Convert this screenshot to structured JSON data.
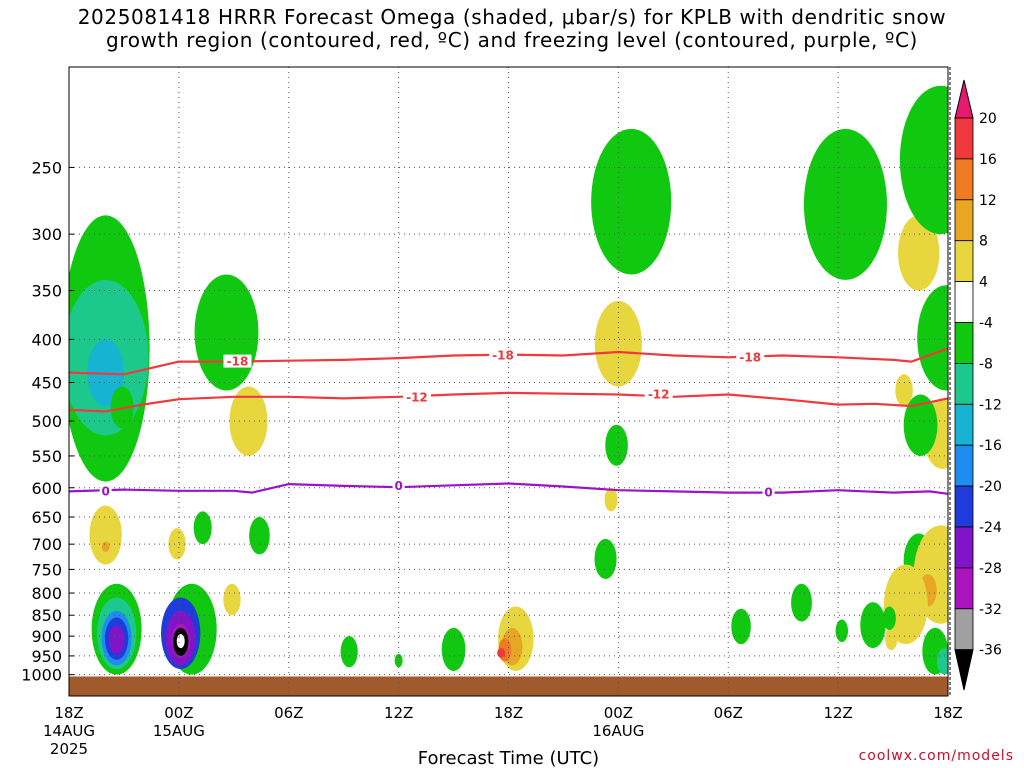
{
  "title": {
    "line1": "2025081418 HRRR Forecast Omega (shaded, μbar/s) for KPLB with dendritic snow",
    "line2": "growth region (contoured, red, ºC) and freezing level (contoured, purple, ºC)"
  },
  "credit": "coolwx.com/models",
  "chart_data": {
    "type": "heatmap",
    "xlabel": "Forecast Time (UTC)",
    "ylabel": "",
    "x_ticks": [
      {
        "hour": 0,
        "label": "18Z",
        "sub1": "14AUG",
        "sub2": "2025"
      },
      {
        "hour": 6,
        "label": "00Z",
        "sub1": "15AUG",
        "sub2": ""
      },
      {
        "hour": 12,
        "label": "06Z",
        "sub1": "",
        "sub2": ""
      },
      {
        "hour": 18,
        "label": "12Z",
        "sub1": "",
        "sub2": ""
      },
      {
        "hour": 24,
        "label": "18Z",
        "sub1": "",
        "sub2": ""
      },
      {
        "hour": 30,
        "label": "00Z",
        "sub1": "16AUG",
        "sub2": ""
      },
      {
        "hour": 36,
        "label": "06Z",
        "sub1": "",
        "sub2": ""
      },
      {
        "hour": 42,
        "label": "12Z",
        "sub1": "",
        "sub2": ""
      },
      {
        "hour": 48,
        "label": "18Z",
        "sub1": "",
        "sub2": ""
      }
    ],
    "xlim": [
      0,
      48
    ],
    "y_axis": "pressure (hPa), log scale, inverted",
    "y_ticks": [
      250,
      300,
      350,
      400,
      450,
      500,
      550,
      600,
      650,
      700,
      750,
      800,
      850,
      900,
      950,
      1000
    ],
    "ylim": [
      1060,
      190
    ],
    "grid": true,
    "colorbar": {
      "label_values": [
        "20",
        "16",
        "12",
        "8",
        "4",
        "-4",
        "-8",
        "-12",
        "-16",
        "-20",
        "-24",
        "-28",
        "-32",
        "-36"
      ],
      "bins": [
        {
          "range": ">20",
          "color": "#e8186e"
        },
        {
          "range": "16 to 20",
          "color": "#f0393c"
        },
        {
          "range": "12 to 16",
          "color": "#f07a22"
        },
        {
          "range": "8 to 12",
          "color": "#e8a624"
        },
        {
          "range": "4 to 8",
          "color": "#e8d63e"
        },
        {
          "range": "-4 to 4",
          "color": "#ffffff"
        },
        {
          "range": "-8 to -4",
          "color": "#0fc80f"
        },
        {
          "range": "-12 to -8",
          "color": "#1dc88c"
        },
        {
          "range": "-16 to -12",
          "color": "#16b4d2"
        },
        {
          "range": "-20 to -16",
          "color": "#1e8cf0"
        },
        {
          "range": "-24 to -20",
          "color": "#1e3cdc"
        },
        {
          "range": "-28 to -24",
          "color": "#8214c8"
        },
        {
          "range": "-32 to -28",
          "color": "#aa14be"
        },
        {
          "range": "-36 to -32",
          "color": "#a0a0a0"
        },
        {
          "range": "<-36",
          "color": "#000000"
        }
      ]
    },
    "series": [
      {
        "name": "",
        "label": "-18",
        "color": "#f0393c",
        "points": [
          [
            0,
            438
          ],
          [
            3,
            440
          ],
          [
            6,
            425
          ],
          [
            9,
            425
          ],
          [
            12,
            424
          ],
          [
            15,
            423
          ],
          [
            18,
            421
          ],
          [
            21,
            418
          ],
          [
            24,
            417
          ],
          [
            27,
            418
          ],
          [
            30,
            414
          ],
          [
            33,
            418
          ],
          [
            36,
            420
          ],
          [
            39,
            418
          ],
          [
            42,
            420
          ],
          [
            45,
            423
          ],
          [
            46,
            425
          ],
          [
            48,
            410
          ]
        ]
      },
      {
        "name": "",
        "label": "-12",
        "color": "#f0393c",
        "points": [
          [
            0,
            485
          ],
          [
            2,
            487
          ],
          [
            4,
            478
          ],
          [
            6,
            471
          ],
          [
            9,
            468
          ],
          [
            12,
            468
          ],
          [
            15,
            470
          ],
          [
            18,
            468
          ],
          [
            21,
            465
          ],
          [
            24,
            463
          ],
          [
            27,
            464
          ],
          [
            30,
            465
          ],
          [
            33,
            468
          ],
          [
            36,
            465
          ],
          [
            39,
            471
          ],
          [
            42,
            478
          ],
          [
            44,
            477
          ],
          [
            46,
            480
          ],
          [
            48,
            470
          ]
        ]
      },
      {
        "name": "",
        "label": "0",
        "color": "#9a14c8",
        "points": [
          [
            0,
            606
          ],
          [
            3,
            603
          ],
          [
            6,
            605
          ],
          [
            9,
            605
          ],
          [
            10,
            608
          ],
          [
            12,
            594
          ],
          [
            15,
            597
          ],
          [
            18,
            599
          ],
          [
            21,
            596
          ],
          [
            24,
            593
          ],
          [
            27,
            598
          ],
          [
            30,
            604
          ],
          [
            33,
            606
          ],
          [
            36,
            608
          ],
          [
            39,
            608
          ],
          [
            42,
            604
          ],
          [
            45,
            608
          ],
          [
            47,
            606
          ],
          [
            48,
            610
          ]
        ]
      }
    ],
    "contour_labels": [
      {
        "text": "-18",
        "hour": 9.2,
        "p": 425
      },
      {
        "text": "-18",
        "hour": 23.7,
        "p": 418
      },
      {
        "text": "-18",
        "hour": 37.2,
        "p": 420
      },
      {
        "text": "-12",
        "hour": 19.0,
        "p": 469
      },
      {
        "text": "-12",
        "hour": 32.2,
        "p": 465
      },
      {
        "text": "0",
        "hour": 2.0,
        "p": 606
      },
      {
        "text": "0",
        "hour": 18.0,
        "p": 597
      },
      {
        "text": "0",
        "hour": 38.2,
        "p": 608
      }
    ],
    "shaded_regions": [
      {
        "color": "#0fc80f",
        "hour": 2.0,
        "p_top": 285,
        "p_bot": 590
      },
      {
        "color": "#1dc88c",
        "hour": 2.0,
        "p_top": 340,
        "p_bot": 520
      },
      {
        "color": "#16b4d2",
        "hour": 2.0,
        "p_top": 400,
        "p_bot": 480
      },
      {
        "color": "#0fc80f",
        "hour": 2.9,
        "p_top": 455,
        "p_bot": 510
      },
      {
        "color": "#0fc80f",
        "hour": 8.6,
        "p_top": 335,
        "p_bot": 460
      },
      {
        "color": "#e8d63e",
        "hour": 9.8,
        "p_top": 455,
        "p_bot": 550
      },
      {
        "color": "#e8d63e",
        "hour": 2.0,
        "p_top": 630,
        "p_bot": 740
      },
      {
        "color": "#e8a624",
        "hour": 2.0,
        "p_top": 695,
        "p_bot": 715
      },
      {
        "color": "#e8d63e",
        "hour": 5.9,
        "p_top": 670,
        "p_bot": 730
      },
      {
        "color": "#0fc80f",
        "hour": 7.3,
        "p_top": 640,
        "p_bot": 700
      },
      {
        "color": "#0fc80f",
        "hour": 10.4,
        "p_top": 650,
        "p_bot": 720
      },
      {
        "color": "#e8d63e",
        "hour": 8.9,
        "p_top": 780,
        "p_bot": 850
      },
      {
        "color": "#0fc80f",
        "hour": 2.6,
        "p_top": 780,
        "p_bot": 1000
      },
      {
        "color": "#1dc88c",
        "hour": 2.6,
        "p_top": 810,
        "p_bot": 985
      },
      {
        "color": "#1e8cf0",
        "hour": 2.6,
        "p_top": 840,
        "p_bot": 975
      },
      {
        "color": "#1e3cdc",
        "hour": 2.6,
        "p_top": 855,
        "p_bot": 960
      },
      {
        "color": "#8214c8",
        "hour": 2.6,
        "p_top": 875,
        "p_bot": 945
      },
      {
        "color": "#0fc80f",
        "hour": 6.7,
        "p_top": 780,
        "p_bot": 1000
      },
      {
        "color": "#1e3cdc",
        "hour": 6.1,
        "p_top": 810,
        "p_bot": 985
      },
      {
        "color": "#8214c8",
        "hour": 6.1,
        "p_top": 840,
        "p_bot": 975
      },
      {
        "color": "#aa14be",
        "hour": 6.1,
        "p_top": 870,
        "p_bot": 955
      },
      {
        "color": "#000000",
        "hour": 6.1,
        "p_top": 880,
        "p_bot": 950
      },
      {
        "color": "#ffffff",
        "hour": 6.1,
        "p_top": 895,
        "p_bot": 930
      },
      {
        "color": "#e8d63e",
        "hour": 24.4,
        "p_top": 830,
        "p_bot": 990
      },
      {
        "color": "#e8a624",
        "hour": 24.2,
        "p_top": 880,
        "p_bot": 975
      },
      {
        "color": "#f07a22",
        "hour": 23.8,
        "p_top": 905,
        "p_bot": 965
      },
      {
        "color": "#f0393c",
        "hour": 23.6,
        "p_top": 930,
        "p_bot": 955
      },
      {
        "color": "#0fc80f",
        "hour": 21.0,
        "p_top": 880,
        "p_bot": 990
      },
      {
        "color": "#e8d63e",
        "hour": 30.0,
        "p_top": 360,
        "p_bot": 455
      },
      {
        "color": "#0fc80f",
        "hour": 30.7,
        "p_top": 225,
        "p_bot": 335
      },
      {
        "color": "#e8d63e",
        "hour": 29.6,
        "p_top": 600,
        "p_bot": 640
      },
      {
        "color": "#0fc80f",
        "hour": 29.9,
        "p_top": 505,
        "p_bot": 565
      },
      {
        "color": "#0fc80f",
        "hour": 29.3,
        "p_top": 690,
        "p_bot": 770
      },
      {
        "color": "#0fc80f",
        "hour": 15.3,
        "p_top": 900,
        "p_bot": 980
      },
      {
        "color": "#0fc80f",
        "hour": 18.0,
        "p_top": 945,
        "p_bot": 980
      },
      {
        "color": "#0fc80f",
        "hour": 42.4,
        "p_top": 225,
        "p_bot": 340
      },
      {
        "color": "#e8d63e",
        "hour": 46.4,
        "p_top": 285,
        "p_bot": 350
      },
      {
        "color": "#0fc80f",
        "hour": 47.6,
        "p_top": 200,
        "p_bot": 300
      },
      {
        "color": "#0fc80f",
        "hour": 47.9,
        "p_top": 345,
        "p_bot": 460
      },
      {
        "color": "#e8d63e",
        "hour": 45.6,
        "p_top": 440,
        "p_bot": 480
      },
      {
        "color": "#e8d63e",
        "hour": 47.7,
        "p_top": 470,
        "p_bot": 570
      },
      {
        "color": "#0fc80f",
        "hour": 46.5,
        "p_top": 465,
        "p_bot": 550
      },
      {
        "color": "#0fc80f",
        "hour": 46.4,
        "p_top": 680,
        "p_bot": 790
      },
      {
        "color": "#e8d63e",
        "hour": 47.6,
        "p_top": 665,
        "p_bot": 870
      },
      {
        "color": "#e8a624",
        "hour": 46.9,
        "p_top": 760,
        "p_bot": 830
      },
      {
        "color": "#e8d63e",
        "hour": 45.7,
        "p_top": 740,
        "p_bot": 920
      },
      {
        "color": "#0fc80f",
        "hour": 47.3,
        "p_top": 880,
        "p_bot": 1000
      },
      {
        "color": "#1dc88c",
        "hour": 47.8,
        "p_top": 930,
        "p_bot": 1000
      },
      {
        "color": "#0fc80f",
        "hour": 40.0,
        "p_top": 780,
        "p_bot": 865
      },
      {
        "color": "#0fc80f",
        "hour": 36.7,
        "p_top": 835,
        "p_bot": 920
      },
      {
        "color": "#0fc80f",
        "hour": 43.9,
        "p_top": 820,
        "p_bot": 930
      },
      {
        "color": "#0fc80f",
        "hour": 42.2,
        "p_top": 860,
        "p_bot": 915
      },
      {
        "color": "#e8d63e",
        "hour": 44.9,
        "p_top": 880,
        "p_bot": 935
      },
      {
        "color": "#0fc80f",
        "hour": 44.8,
        "p_top": 830,
        "p_bot": 885
      },
      {
        "color": "#0fc80f",
        "hour": 43.6,
        "p_top": 870,
        "p_bot": 910
      }
    ],
    "terrain_color": "#a05a2c"
  }
}
